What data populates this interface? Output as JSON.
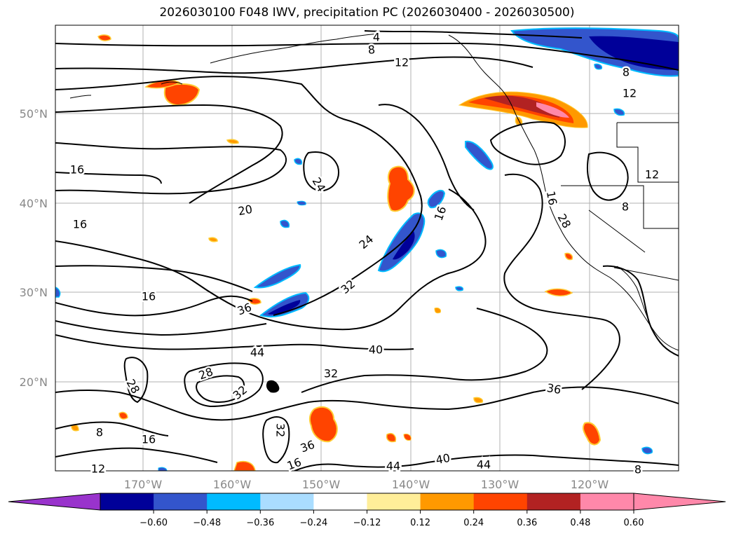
{
  "title": "2026030100 F048 IWV, precipitation PC (2026030400 - 2026030500)",
  "map": {
    "lat_labels": [
      "50°N",
      "40°N",
      "30°N",
      "20°N"
    ],
    "lon_labels": [
      "170°W",
      "160°W",
      "150°W",
      "140°W",
      "130°W",
      "120°W"
    ],
    "contour_labels": [
      "4",
      "8",
      "12",
      "8",
      "12",
      "16",
      "24",
      "20",
      "16",
      "24",
      "16",
      "12",
      "8",
      "16",
      "28",
      "36",
      "32",
      "40",
      "44",
      "32",
      "28",
      "32",
      "28",
      "32",
      "36",
      "16",
      "44",
      "40",
      "44",
      "36",
      "8",
      "16",
      "12",
      "8",
      "16"
    ]
  },
  "colorbar": {
    "tick_labels": [
      "−0.60",
      "−0.48",
      "−0.36",
      "−0.24",
      "−0.12",
      "0.12",
      "0.24",
      "0.36",
      "0.48",
      "0.60"
    ],
    "colors": {
      "under": "#9933cc",
      "bins": [
        "#000099",
        "#3355cc",
        "#00bbff",
        "#aaddff",
        "#ffffff",
        "#ffee99",
        "#ff9900",
        "#ff4400",
        "#b22222",
        "#ff88aa"
      ],
      "over": "#ff88aa"
    }
  }
}
